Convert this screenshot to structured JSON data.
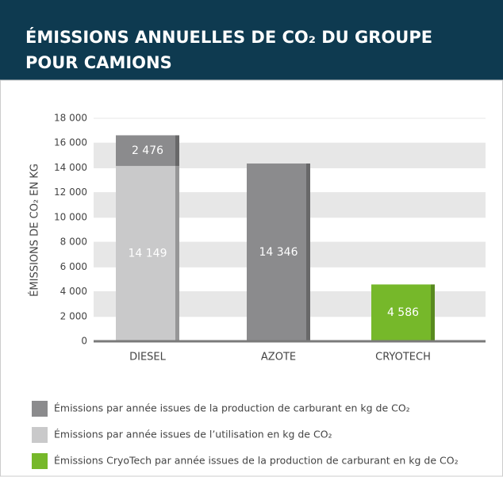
{
  "chart_data": {
    "type": "stacked_bar",
    "title": "ÉMISSIONS ANNUELLES DE CO₂ DU GROUPE POUR CAMIONS",
    "y_label": "ÉMISSIONS DE CO₂ EN KG",
    "categories": [
      "DIESEL",
      "AZOTE",
      "CRYOTECH"
    ],
    "series": [
      {
        "name": "Émissions par année issues de la production de carburant en kg de CO₂",
        "color": "#8b8b8d",
        "values": [
          2476,
          14346,
          null
        ],
        "value_labels": [
          "2 476",
          "14 346",
          null
        ]
      },
      {
        "name": "Émissions par année issues de l’utilisation en kg de CO₂",
        "color": "#c9c9ca",
        "values": [
          14149,
          null,
          null
        ],
        "value_labels": [
          "14 149",
          null,
          null
        ]
      },
      {
        "name": "Émissions CryoTech par année issues de la production de carburant en kg de CO₂",
        "color": "#76b82a",
        "values": [
          null,
          null,
          4586
        ],
        "value_labels": [
          null,
          null,
          "4 586"
        ]
      }
    ],
    "ylim": [
      0,
      18000
    ],
    "yticks": [
      0,
      {
        "value": 2000,
        "label": "2 000"
      },
      {
        "value": 4000,
        "label": "4 000"
      },
      {
        "value": 6000,
        "label": "6 000"
      },
      {
        "value": 8000,
        "label": "8 000"
      },
      {
        "value": 10000,
        "label": "10 000"
      },
      {
        "value": 12000,
        "label": "12 000"
      },
      {
        "value": 14000,
        "label": "14 000"
      },
      {
        "value": 16000,
        "label": "16 000"
      },
      {
        "value": 18000,
        "label": "18 000"
      }
    ],
    "grid": true
  }
}
